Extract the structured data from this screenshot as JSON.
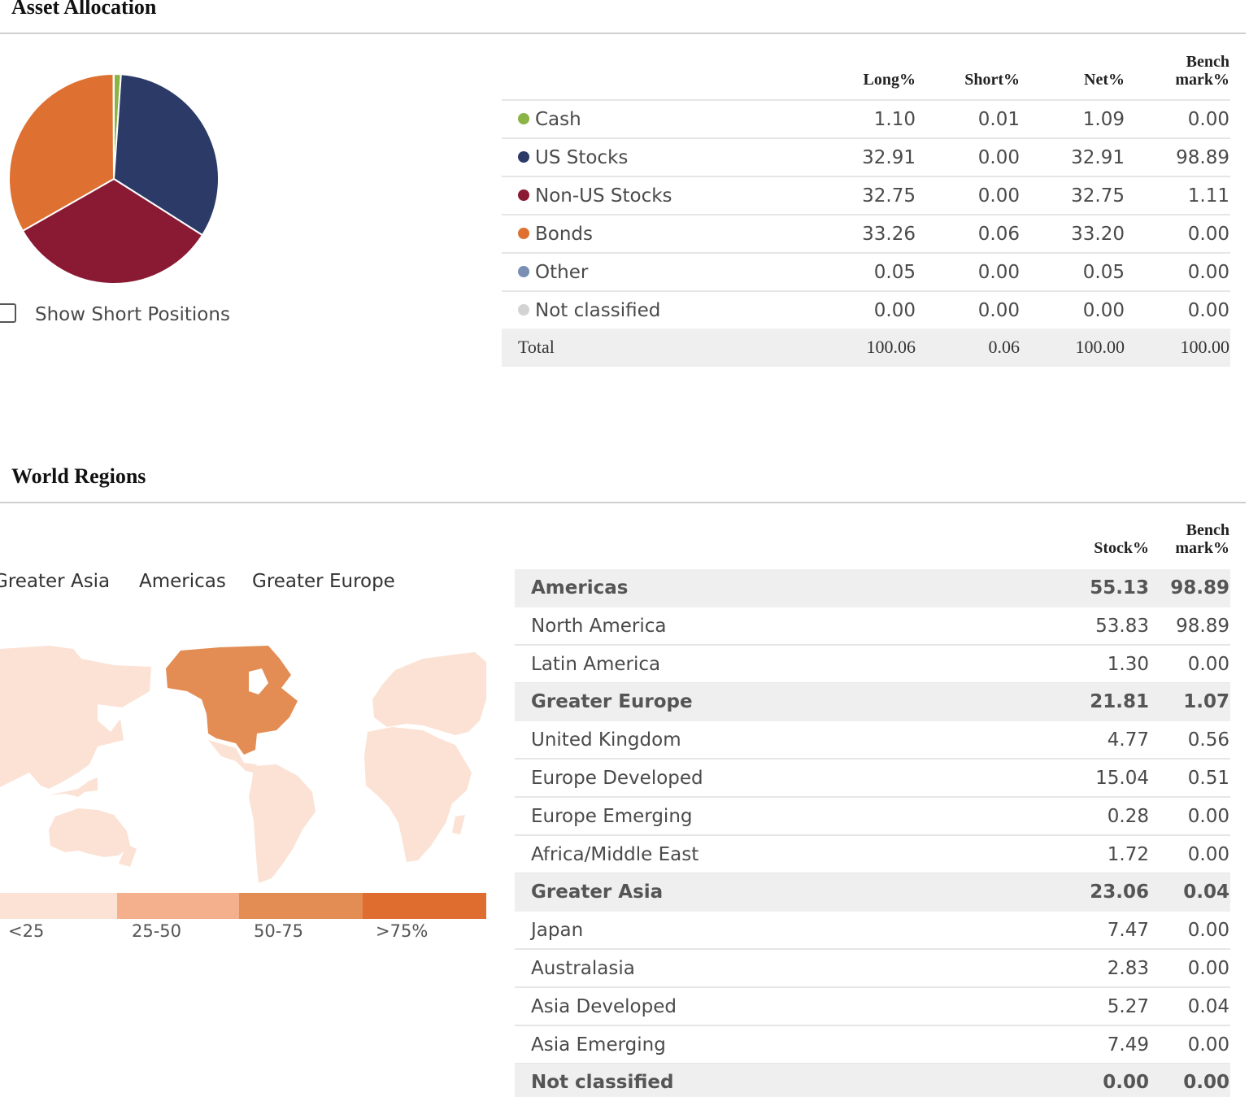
{
  "asset_allocation": {
    "title": "Asset Allocation",
    "show_short_label": "Show Short Positions",
    "headers": {
      "long": "Long%",
      "short": "Short%",
      "net": "Net%",
      "bench_line1": "Bench",
      "bench_line2": "mark%"
    },
    "rows": [
      {
        "label": "Cash",
        "long": "1.10",
        "short": "0.01",
        "net": "1.09",
        "bench": "0.00",
        "color": "#8ab446"
      },
      {
        "label": "US Stocks",
        "long": "32.91",
        "short": "0.00",
        "net": "32.91",
        "bench": "98.89",
        "color": "#2b3a67"
      },
      {
        "label": "Non-US Stocks",
        "long": "32.75",
        "short": "0.00",
        "net": "32.75",
        "bench": "1.11",
        "color": "#8a1a33"
      },
      {
        "label": "Bonds",
        "long": "33.26",
        "short": "0.06",
        "net": "33.20",
        "bench": "0.00",
        "color": "#de7131"
      },
      {
        "label": "Other",
        "long": "0.05",
        "short": "0.00",
        "net": "0.05",
        "bench": "0.00",
        "color": "#7a8fb3"
      },
      {
        "label": "Not classified",
        "long": "0.00",
        "short": "0.00",
        "net": "0.00",
        "bench": "0.00",
        "color": "#d3d3d3"
      }
    ],
    "total": {
      "label": "Total",
      "long": "100.06",
      "short": "0.06",
      "net": "100.00",
      "bench": "100.00"
    }
  },
  "world_regions": {
    "title": "World Regions",
    "tabs": [
      "Greater Asia",
      "Americas",
      "Greater Europe"
    ],
    "headers": {
      "stock": "Stock%",
      "bench_line1": "Bench",
      "bench_line2": "mark%"
    },
    "rows": [
      {
        "label": "Americas",
        "stock": "55.13",
        "bench": "98.89",
        "group": true
      },
      {
        "label": "North America",
        "stock": "53.83",
        "bench": "98.89",
        "group": false
      },
      {
        "label": "Latin America",
        "stock": "1.30",
        "bench": "0.00",
        "group": false
      },
      {
        "label": "Greater Europe",
        "stock": "21.81",
        "bench": "1.07",
        "group": true
      },
      {
        "label": "United Kingdom",
        "stock": "4.77",
        "bench": "0.56",
        "group": false
      },
      {
        "label": "Europe Developed",
        "stock": "15.04",
        "bench": "0.51",
        "group": false
      },
      {
        "label": "Europe Emerging",
        "stock": "0.28",
        "bench": "0.00",
        "group": false
      },
      {
        "label": "Africa/Middle East",
        "stock": "1.72",
        "bench": "0.00",
        "group": false
      },
      {
        "label": "Greater Asia",
        "stock": "23.06",
        "bench": "0.04",
        "group": true
      },
      {
        "label": "Japan",
        "stock": "7.47",
        "bench": "0.00",
        "group": false
      },
      {
        "label": "Australasia",
        "stock": "2.83",
        "bench": "0.00",
        "group": false
      },
      {
        "label": "Asia Developed",
        "stock": "5.27",
        "bench": "0.04",
        "group": false
      },
      {
        "label": "Asia Emerging",
        "stock": "7.49",
        "bench": "0.00",
        "group": false
      },
      {
        "label": "Not classified",
        "stock": "0.00",
        "bench": "0.00",
        "group": true
      }
    ],
    "legend": [
      {
        "label": "<25",
        "color": "#fbe2d4"
      },
      {
        "label": "25-50",
        "color": "#f4b08c"
      },
      {
        "label": "50-75",
        "color": "#e38d55"
      },
      {
        "label": ">75%",
        "color": "#de6d2f"
      }
    ]
  },
  "chart_data": {
    "type": "pie",
    "categories": [
      "Cash",
      "US Stocks",
      "Non-US Stocks",
      "Bonds",
      "Other",
      "Not classified"
    ],
    "values": [
      1.09,
      32.91,
      32.75,
      33.2,
      0.05,
      0.0
    ],
    "colors": [
      "#8ab446",
      "#2b3a67",
      "#8a1a33",
      "#de7131",
      "#7a8fb3",
      "#d3d3d3"
    ]
  }
}
